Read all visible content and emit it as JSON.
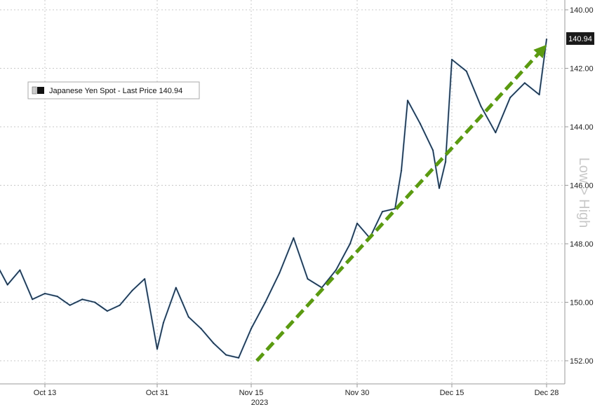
{
  "chart_data": {
    "type": "line",
    "title": "",
    "legend": {
      "label": "Japanese Yen Spot - Last Price 140.94",
      "placement": "top-left"
    },
    "y_axis": {
      "inverted": true,
      "range": [
        140.0,
        153.0
      ],
      "ticks": [
        "140.00",
        "142.00",
        "144.00",
        "146.00",
        "148.00",
        "150.00",
        "152.00"
      ],
      "side_label": "Low > High",
      "last_price_label": "140.94"
    },
    "x_axis": {
      "tick_labels": [
        "Oct 13",
        "Oct 31",
        "Nov 15",
        "Nov 30",
        "Dec 15",
        "Dec 28"
      ],
      "year_label": "2023"
    },
    "grid": true,
    "colors": {
      "line": "#1a2a3a",
      "line_highlight": "#3a82c8",
      "trend": "#5a9a10",
      "grid": "#c8c8c8",
      "last_price_box": "#1a1a1a"
    },
    "series": [
      {
        "name": "Japanese Yen Spot",
        "x": [
          "Oct 05",
          "Oct 07",
          "Oct 09",
          "Oct 11",
          "Oct 13",
          "Oct 15",
          "Oct 17",
          "Oct 19",
          "Oct 21",
          "Oct 23",
          "Oct 25",
          "Oct 27",
          "Oct 29",
          "Oct 31",
          "Nov 01",
          "Nov 03",
          "Nov 05",
          "Nov 07",
          "Nov 09",
          "Nov 11",
          "Nov 13",
          "Nov 15",
          "Nov 17",
          "Nov 19",
          "Nov 21",
          "Nov 23",
          "Nov 25",
          "Nov 27",
          "Nov 29",
          "Nov 30",
          "Dec 02",
          "Dec 04",
          "Dec 06",
          "Dec 07",
          "Dec 08",
          "Dec 10",
          "Dec 12",
          "Dec 13",
          "Dec 14",
          "Dec 15",
          "Dec 17",
          "Dec 19",
          "Dec 21",
          "Dec 23",
          "Dec 25",
          "Dec 27",
          "Dec 28"
        ],
        "values": [
          148.6,
          149.4,
          148.9,
          149.9,
          149.7,
          149.8,
          150.1,
          149.9,
          150.0,
          150.3,
          150.1,
          149.6,
          149.2,
          151.6,
          150.7,
          149.5,
          150.5,
          150.9,
          151.4,
          151.8,
          151.9,
          150.9,
          150.0,
          149.0,
          147.8,
          149.2,
          149.5,
          148.9,
          148.0,
          147.3,
          147.8,
          146.9,
          146.8,
          145.5,
          143.1,
          143.9,
          144.8,
          146.1,
          145.2,
          141.7,
          142.1,
          143.3,
          144.2,
          143.0,
          142.5,
          142.9,
          141.0
        ]
      }
    ],
    "trend_line": {
      "start": {
        "x": "Nov 15",
        "y": 152.0
      },
      "end": {
        "x": "Dec 28",
        "y": 141.3
      }
    }
  }
}
